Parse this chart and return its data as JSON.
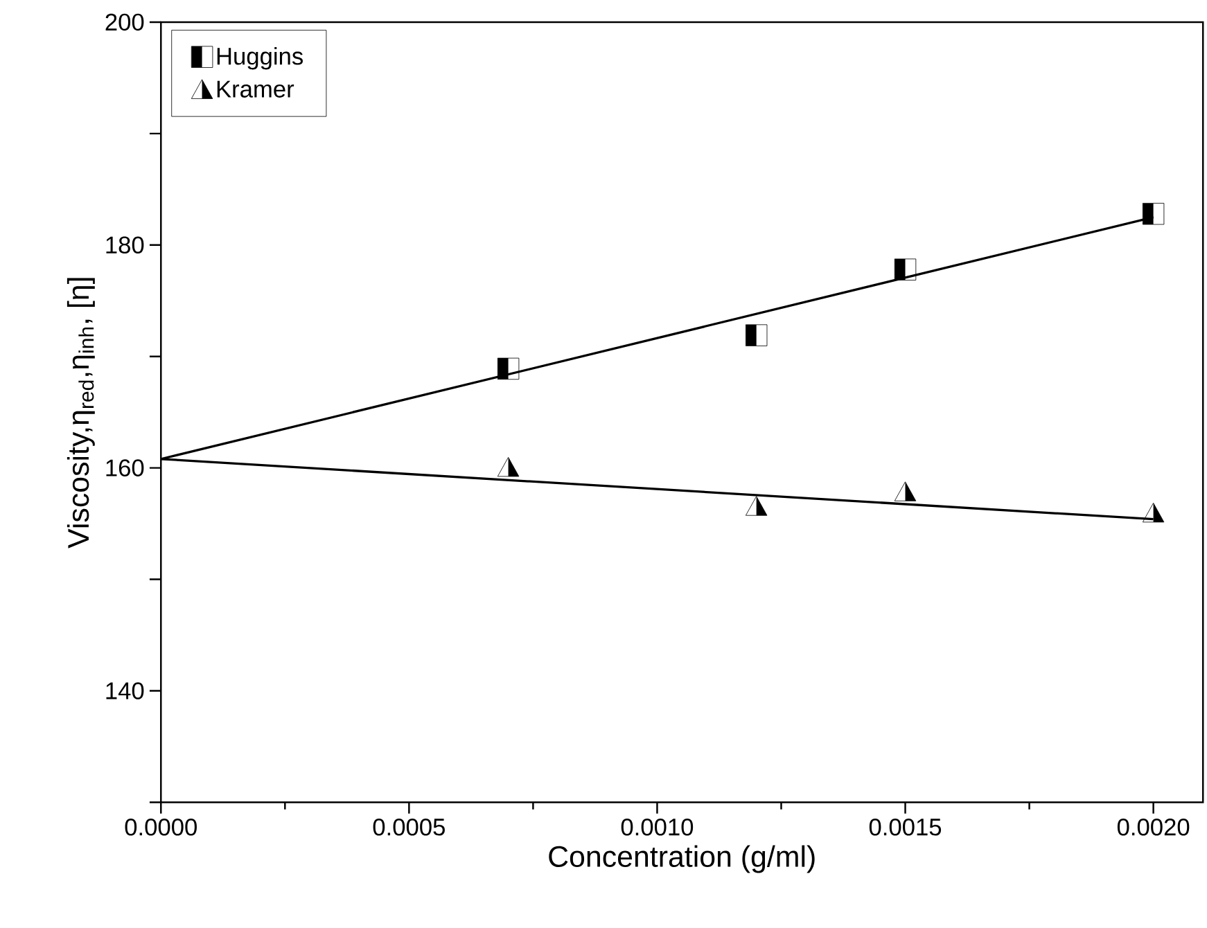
{
  "chart_data": {
    "type": "scatter",
    "xlabel": "Concentration (g/ml)",
    "ylabel": "Viscosity,η$_{red}$,η$_{inh}$, [η]",
    "xlim": [
      0,
      0.0021
    ],
    "ylim": [
      130,
      200
    ],
    "xticks": [
      {
        "value": 0,
        "label": "0.0000"
      },
      {
        "value": 0.0005,
        "label": "0.0005"
      },
      {
        "value": 0.001,
        "label": "0.0010"
      },
      {
        "value": 0.0015,
        "label": "0.0015"
      },
      {
        "value": 0.002,
        "label": "0.0020"
      }
    ],
    "yticks": [
      {
        "value": 130,
        "label": null
      },
      140,
      {
        "value": 150,
        "label": null
      },
      160,
      {
        "value": 170,
        "label": null
      },
      180,
      {
        "value": 190,
        "label": null
      },
      200
    ],
    "legend": "top left",
    "grid": false,
    "series": [
      {
        "name": "Huggins",
        "marker": "square",
        "color": "#000000",
        "x": [
          0.0007,
          0.0012,
          0.0015,
          0.002
        ],
        "values": [
          168.9,
          171.9,
          177.8,
          182.8
        ]
      },
      {
        "name": "Kramer",
        "marker": "triangle",
        "color": "#000000",
        "x": [
          0.0007,
          0.0012,
          0.0015,
          0.002
        ],
        "values": [
          160.0,
          156.5,
          157.8,
          155.9
        ]
      },
      {
        "type": "line",
        "marker": "none",
        "line_style": "solid",
        "color": "#000000",
        "x": [
          0,
          0.002
        ],
        "values": [
          160.8,
          182.5
        ]
      },
      {
        "type": "line",
        "marker": "none",
        "line_style": "solid",
        "color": "#000000",
        "x": [
          0,
          0.002
        ],
        "values": [
          160.8,
          155.4
        ]
      }
    ]
  }
}
